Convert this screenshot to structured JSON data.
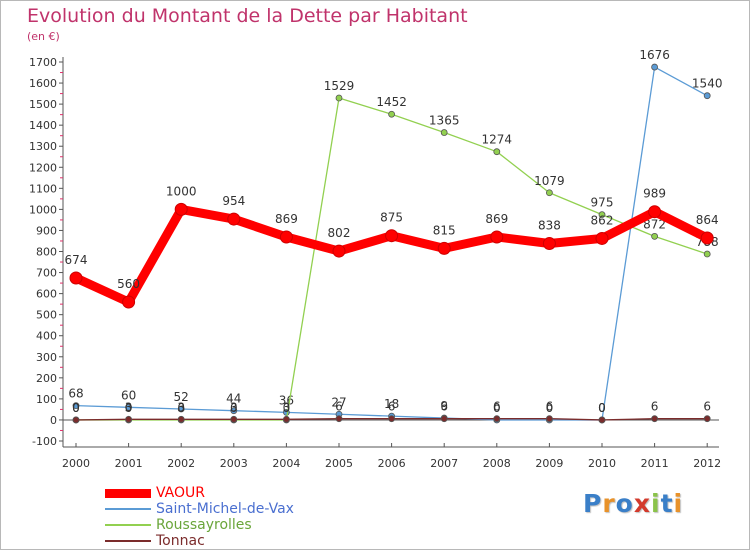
{
  "title": "Evolution du Montant de la Dette par Habitant",
  "subtitle": "(en €)",
  "logo": {
    "text": "Proxiti",
    "colors": [
      "#3a7fc8",
      "#e8922a",
      "#3a7fc8",
      "#d33a2c",
      "#8bc34a",
      "#3a7fc8",
      "#e8922a"
    ]
  },
  "chart_data": {
    "type": "line",
    "x": [
      "2000",
      "2001",
      "2002",
      "2003",
      "2004",
      "2005",
      "2006",
      "2007",
      "2008",
      "2009",
      "2010",
      "2011",
      "2012"
    ],
    "ylim": [
      -100,
      1700
    ],
    "yticks": [
      -100,
      0,
      100,
      200,
      300,
      400,
      500,
      600,
      700,
      800,
      900,
      1000,
      1100,
      1200,
      1300,
      1400,
      1500,
      1600,
      1700
    ],
    "grid": false,
    "legend_position": "bottom-left",
    "series": [
      {
        "name": "Saint-Michel-de-Vax",
        "color": "#5b9bd5",
        "values": [
          68,
          60,
          52,
          44,
          36,
          27,
          18,
          9,
          0,
          0,
          0,
          1676,
          1540
        ],
        "labels": [
          "68",
          "60",
          "52",
          "44",
          "36",
          "27",
          "18",
          "9",
          "0",
          "0",
          "0",
          "1676",
          "1540"
        ]
      },
      {
        "name": "Roussayrolles",
        "color": "#92d050",
        "values": [
          0,
          0,
          0,
          0,
          0,
          1529,
          1452,
          1365,
          1274,
          1079,
          975,
          872,
          788
        ],
        "labels": [
          "0",
          "0",
          "0",
          "0",
          "0",
          "1529",
          "1452",
          "1365",
          "1274",
          "1079",
          "975",
          "872",
          "788"
        ]
      },
      {
        "name": "Tonnac",
        "color": "#7b2c2c",
        "values": [
          0,
          3,
          3,
          3,
          3,
          6,
          6,
          6,
          6,
          6,
          0,
          6,
          6
        ],
        "labels": [
          "0",
          "3",
          "3",
          "3",
          "3",
          "6",
          "6",
          "6",
          "6",
          "6",
          "0",
          "6",
          "6"
        ]
      },
      {
        "name": "VAOUR",
        "color": "#ff0000",
        "values": [
          674,
          560,
          1000,
          954,
          869,
          802,
          875,
          815,
          869,
          838,
          862,
          989,
          864
        ],
        "labels": [
          "674",
          "560",
          "1000",
          "954",
          "869",
          "802",
          "875",
          "815",
          "869",
          "838",
          "862",
          "989",
          "864"
        ]
      }
    ],
    "legend_order": [
      "VAOUR",
      "Saint-Michel-de-Vax",
      "Roussayrolles",
      "Tonnac"
    ]
  }
}
